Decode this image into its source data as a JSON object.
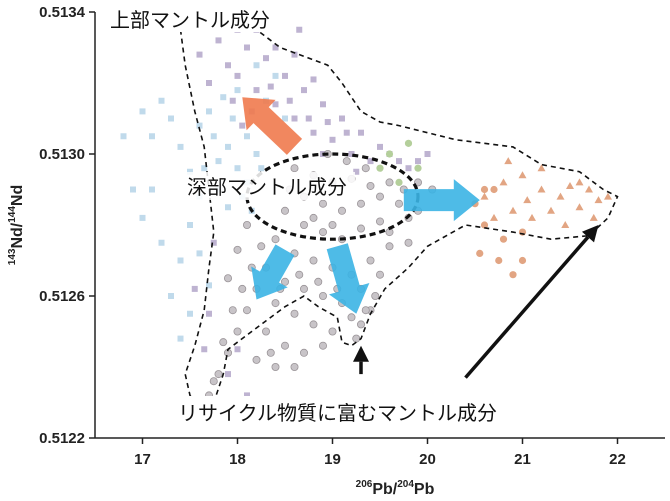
{
  "chart_data": {
    "type": "scatter",
    "xlabel_sup": "206",
    "xlabel_base": "Pb/",
    "xlabel_sup2": "204",
    "xlabel_base2": "Pb",
    "ylabel_sup": "143",
    "ylabel_base": "Nd/",
    "ylabel_sup2": "144",
    "ylabel_base2": "Nd",
    "xlim": [
      16.5,
      22.5
    ],
    "ylim": [
      0.5122,
      0.5134
    ],
    "x_ticks": [
      17,
      18,
      19,
      20,
      21,
      22
    ],
    "y_ticks": [
      0.5122,
      0.5126,
      0.513,
      0.5134
    ],
    "x_tick_labels": [
      "17",
      "18",
      "19",
      "20",
      "21",
      "22"
    ],
    "y_tick_labels": [
      "0.5122",
      "0.5126",
      "0.5130",
      "0.5134"
    ],
    "annotations": {
      "upper_mantle": "上部マントル成分",
      "deep_mantle": "深部マントル成分",
      "recycled": "リサイクル物質に富むマントル成分"
    },
    "colors": {
      "gray_points": "#c8c4c8",
      "gray_edge": "#9a9498",
      "purple_points": "#b3a6c9",
      "lightblue_points": "#b5d3e8",
      "green_points": "#b4cf9b",
      "orange_points": "#e2a583",
      "arrow_orange": "#f07a4e",
      "arrow_blue": "#3bb4e4",
      "arrow_black": "#111111"
    },
    "series": [
      {
        "marker": "square",
        "color_key": "lightblue_points",
        "points": [
          [
            17.8,
            0.51298
          ],
          [
            17.9,
            0.51302
          ],
          [
            17.6,
            0.51308
          ],
          [
            18.0,
            0.51296
          ],
          [
            18.1,
            0.51305
          ],
          [
            17.7,
            0.51312
          ],
          [
            17.5,
            0.51295
          ],
          [
            17.3,
            0.5131
          ],
          [
            17.4,
            0.51302
          ],
          [
            17.2,
            0.51315
          ],
          [
            17.1,
            0.51305
          ],
          [
            17.0,
            0.51312
          ],
          [
            18.2,
            0.513
          ],
          [
            18.0,
            0.51318
          ],
          [
            17.8,
            0.5129
          ],
          [
            17.6,
            0.51288
          ],
          [
            17.9,
            0.51285
          ],
          [
            18.1,
            0.51292
          ],
          [
            17.95,
            0.5131
          ],
          [
            17.85,
            0.51316
          ],
          [
            17.75,
            0.51305
          ],
          [
            17.65,
            0.51296
          ],
          [
            18.05,
            0.51288
          ],
          [
            18.15,
            0.51284
          ],
          [
            18.25,
            0.51296
          ],
          [
            17.5,
            0.5128
          ],
          [
            17.4,
            0.5127
          ],
          [
            17.3,
            0.5126
          ],
          [
            17.2,
            0.51275
          ],
          [
            17.1,
            0.5129
          ],
          [
            17.0,
            0.51282
          ],
          [
            16.9,
            0.5129
          ],
          [
            16.8,
            0.51305
          ],
          [
            17.7,
            0.51263
          ],
          [
            17.6,
            0.51272
          ],
          [
            17.5,
            0.51255
          ],
          [
            17.4,
            0.51248
          ],
          [
            18.3,
            0.51315
          ],
          [
            18.4,
            0.51322
          ],
          [
            18.2,
            0.51325
          ],
          [
            18.5,
            0.5131
          ]
        ]
      },
      {
        "marker": "square",
        "color_key": "purple_points",
        "points": [
          [
            18.0,
            0.51322
          ],
          [
            18.2,
            0.51318
          ],
          [
            18.4,
            0.51314
          ],
          [
            18.6,
            0.5131
          ],
          [
            18.8,
            0.51306
          ],
          [
            19.0,
            0.51304
          ],
          [
            19.2,
            0.513
          ],
          [
            19.4,
            0.51298
          ],
          [
            18.1,
            0.5133
          ],
          [
            18.3,
            0.51327
          ],
          [
            18.5,
            0.51322
          ],
          [
            18.7,
            0.51318
          ],
          [
            18.9,
            0.51314
          ],
          [
            17.9,
            0.51325
          ],
          [
            17.8,
            0.51332
          ],
          [
            18.0,
            0.51335
          ],
          [
            18.2,
            0.51335
          ],
          [
            18.6,
            0.51328
          ],
          [
            18.8,
            0.51321
          ],
          [
            19.1,
            0.5131
          ],
          [
            19.3,
            0.51306
          ],
          [
            19.5,
            0.51302
          ],
          [
            19.6,
            0.513
          ],
          [
            19.7,
            0.51298
          ],
          [
            19.8,
            0.51296
          ],
          [
            19.9,
            0.51298
          ],
          [
            20.0,
            0.513
          ],
          [
            18.4,
            0.5133
          ],
          [
            18.55,
            0.51315
          ],
          [
            18.75,
            0.5131
          ],
          [
            18.95,
            0.51309
          ],
          [
            19.15,
            0.51306
          ],
          [
            18.35,
            0.51319
          ],
          [
            18.15,
            0.51312
          ],
          [
            17.95,
            0.51315
          ],
          [
            17.7,
            0.5132
          ],
          [
            17.6,
            0.51328
          ],
          [
            18.45,
            0.51338
          ],
          [
            18.25,
            0.5134
          ],
          [
            17.85,
            0.5134
          ],
          [
            18.65,
            0.51335
          ],
          [
            18.05,
            0.51308
          ],
          [
            18.9,
            0.513
          ],
          [
            19.25,
            0.51295
          ],
          [
            17.75,
            0.51275
          ],
          [
            17.55,
            0.51262
          ],
          [
            17.65,
            0.51245
          ],
          [
            18.0,
            0.51245
          ],
          [
            18.1,
            0.51232
          ],
          [
            17.9,
            0.51238
          ],
          [
            17.8,
            0.51229
          ],
          [
            17.7,
            0.51255
          ]
        ]
      },
      {
        "marker": "circle",
        "color_key": "gray_points",
        "points": [
          [
            18.6,
            0.51296
          ],
          [
            18.8,
            0.51294
          ],
          [
            19.0,
            0.51292
          ],
          [
            19.2,
            0.51293
          ],
          [
            19.4,
            0.51291
          ],
          [
            18.7,
            0.51288
          ],
          [
            18.9,
            0.51286
          ],
          [
            19.1,
            0.51284
          ],
          [
            19.3,
            0.51286
          ],
          [
            19.5,
            0.51288
          ],
          [
            18.5,
            0.51284
          ],
          [
            18.7,
            0.5128
          ],
          [
            18.9,
            0.51278
          ],
          [
            19.1,
            0.51276
          ],
          [
            19.3,
            0.51279
          ],
          [
            19.5,
            0.51281
          ],
          [
            19.7,
            0.51286
          ],
          [
            18.4,
            0.51276
          ],
          [
            18.6,
            0.51272
          ],
          [
            18.8,
            0.5127
          ],
          [
            19.0,
            0.51268
          ],
          [
            19.2,
            0.51266
          ],
          [
            19.4,
            0.5127
          ],
          [
            19.6,
            0.51274
          ],
          [
            19.8,
            0.51282
          ],
          [
            18.3,
            0.51268
          ],
          [
            18.5,
            0.51264
          ],
          [
            18.7,
            0.51262
          ],
          [
            18.9,
            0.5126
          ],
          [
            19.1,
            0.51258
          ],
          [
            19.3,
            0.51262
          ],
          [
            19.5,
            0.51266
          ],
          [
            18.2,
            0.51262
          ],
          [
            18.4,
            0.51258
          ],
          [
            18.6,
            0.51255
          ],
          [
            18.8,
            0.51252
          ],
          [
            19.0,
            0.5125
          ],
          [
            19.2,
            0.51254
          ],
          [
            19.4,
            0.51256
          ],
          [
            18.1,
            0.51256
          ],
          [
            18.3,
            0.5125
          ],
          [
            18.5,
            0.51246
          ],
          [
            18.7,
            0.51244
          ],
          [
            18.9,
            0.51246
          ],
          [
            19.25,
            0.51248
          ],
          [
            18.0,
            0.5125
          ],
          [
            17.9,
            0.51244
          ],
          [
            18.2,
            0.51242
          ],
          [
            18.4,
            0.5124
          ],
          [
            17.8,
            0.51238
          ],
          [
            17.7,
            0.51232
          ],
          [
            17.75,
            0.51236
          ],
          [
            18.6,
            0.5124
          ],
          [
            19.3,
            0.51252
          ],
          [
            19.35,
            0.51256
          ],
          [
            18.95,
            0.513
          ],
          [
            19.15,
            0.51298
          ],
          [
            19.35,
            0.51296
          ],
          [
            18.55,
            0.5129
          ],
          [
            19.6,
            0.51292
          ],
          [
            19.75,
            0.5129
          ],
          [
            19.9,
            0.51292
          ],
          [
            18.25,
            0.51274
          ],
          [
            18.15,
            0.51268
          ],
          [
            18.05,
            0.51262
          ],
          [
            17.95,
            0.51256
          ],
          [
            19.0,
            0.5128
          ],
          [
            18.8,
            0.51282
          ],
          [
            19.6,
            0.51278
          ],
          [
            19.05,
            0.51262
          ],
          [
            18.35,
            0.51244
          ],
          [
            17.85,
            0.51247
          ],
          [
            18.45,
            0.51262
          ],
          [
            18.65,
            0.51266
          ],
          [
            18.85,
            0.51264
          ],
          [
            19.45,
            0.5126
          ],
          [
            18.1,
            0.5128
          ],
          [
            18.0,
            0.51273
          ],
          [
            17.9,
            0.51265
          ],
          [
            19.8,
            0.51275
          ],
          [
            19.9,
            0.51284
          ],
          [
            20.05,
            0.5129
          ]
        ]
      },
      {
        "marker": "circle",
        "color_key": "green_points",
        "points": [
          [
            19.6,
            0.513
          ],
          [
            19.8,
            0.51303
          ],
          [
            19.9,
            0.51296
          ],
          [
            19.5,
            0.51296
          ],
          [
            19.7,
            0.51292
          ]
        ]
      },
      {
        "marker": "triangle",
        "color_key": "orange_points",
        "points": [
          [
            20.6,
            0.51288
          ],
          [
            20.8,
            0.51292
          ],
          [
            21.0,
            0.51294
          ],
          [
            21.2,
            0.5129
          ],
          [
            21.4,
            0.51288
          ],
          [
            21.6,
            0.51285
          ],
          [
            21.8,
            0.51287
          ],
          [
            20.9,
            0.51284
          ],
          [
            21.1,
            0.51282
          ],
          [
            21.3,
            0.51284
          ],
          [
            21.5,
            0.51291
          ],
          [
            21.7,
            0.5129
          ],
          [
            20.7,
            0.51282
          ],
          [
            21.9,
            0.51288
          ],
          [
            21.2,
            0.51296
          ],
          [
            20.85,
            0.51298
          ],
          [
            21.6,
            0.51292
          ],
          [
            21.45,
            0.5128
          ],
          [
            21.75,
            0.51282
          ],
          [
            21.05,
            0.51287
          ]
        ]
      },
      {
        "marker": "circle",
        "color_key": "orange_points",
        "points": [
          [
            20.5,
            0.51286
          ],
          [
            20.6,
            0.5128
          ],
          [
            20.8,
            0.51276
          ],
          [
            21.0,
            0.51278
          ],
          [
            20.7,
            0.5129
          ],
          [
            20.55,
            0.51272
          ],
          [
            20.75,
            0.5127
          ],
          [
            21.0,
            0.5127
          ],
          [
            20.9,
            0.51266
          ],
          [
            20.6,
            0.5129
          ]
        ]
      }
    ],
    "arrows": [
      {
        "color_key": "arrow_orange",
        "from": [
          18.6,
          0.51302
        ],
        "to": [
          18.05,
          0.51316
        ]
      },
      {
        "color_key": "arrow_blue",
        "from": [
          19.75,
          0.51287
        ],
        "to": [
          20.55,
          0.51287
        ]
      },
      {
        "color_key": "arrow_blue",
        "from": [
          18.5,
          0.51273
        ],
        "to": [
          18.2,
          0.51259
        ]
      },
      {
        "color_key": "arrow_blue",
        "from": [
          19.05,
          0.51274
        ],
        "to": [
          19.25,
          0.51255
        ]
      },
      {
        "color_key": "arrow_black",
        "from": [
          19.3,
          0.51238
        ],
        "to": [
          19.3,
          0.51246
        ]
      },
      {
        "color_key": "arrow_black",
        "from": [
          18.1,
          0.51226
        ],
        "to": [
          17.75,
          0.51231
        ]
      },
      {
        "color_key": "arrow_black",
        "from": [
          20.4,
          0.51237
        ],
        "to": [
          21.8,
          0.5128
        ]
      }
    ],
    "envelope_outer": [
      [
        17.4,
        0.51335
      ],
      [
        17.45,
        0.51325
      ],
      [
        17.55,
        0.51312
      ],
      [
        17.65,
        0.51302
      ],
      [
        17.7,
        0.5129
      ],
      [
        17.75,
        0.51278
      ],
      [
        17.7,
        0.51268
      ],
      [
        17.65,
        0.51256
      ],
      [
        17.55,
        0.51246
      ],
      [
        17.45,
        0.51238
      ],
      [
        17.5,
        0.51232
      ],
      [
        17.6,
        0.51228
      ],
      [
        17.75,
        0.5123
      ],
      [
        17.85,
        0.51238
      ],
      [
        17.9,
        0.51245
      ],
      [
        18.15,
        0.5125
      ],
      [
        18.5,
        0.51257
      ],
      [
        18.7,
        0.5126
      ],
      [
        18.85,
        0.51257
      ],
      [
        19.05,
        0.51254
      ],
      [
        19.1,
        0.51247
      ],
      [
        19.2,
        0.51246
      ],
      [
        19.3,
        0.51248
      ],
      [
        19.4,
        0.51255
      ],
      [
        19.55,
        0.51262
      ],
      [
        19.8,
        0.51268
      ],
      [
        20.0,
        0.51274
      ],
      [
        20.4,
        0.5128
      ],
      [
        20.9,
        0.51278
      ],
      [
        21.3,
        0.51276
      ],
      [
        21.7,
        0.51277
      ],
      [
        21.9,
        0.51282
      ],
      [
        22.0,
        0.51288
      ],
      [
        21.85,
        0.5129
      ],
      [
        21.6,
        0.51295
      ],
      [
        21.2,
        0.51297
      ],
      [
        20.9,
        0.51302
      ],
      [
        20.6,
        0.51303
      ],
      [
        20.3,
        0.51304
      ],
      [
        20.0,
        0.51306
      ],
      [
        19.7,
        0.51308
      ],
      [
        19.5,
        0.51309
      ],
      [
        19.3,
        0.51312
      ],
      [
        19.1,
        0.5132
      ],
      [
        18.95,
        0.51325
      ],
      [
        18.75,
        0.51327
      ],
      [
        18.45,
        0.5133
      ],
      [
        18.2,
        0.51335
      ],
      [
        17.85,
        0.5134
      ],
      [
        17.55,
        0.51342
      ],
      [
        17.4,
        0.51335
      ]
    ],
    "envelope_deep": {
      "cx": 19.0,
      "cy": 0.51288,
      "rx": 0.9,
      "ry": 0.00012
    }
  }
}
